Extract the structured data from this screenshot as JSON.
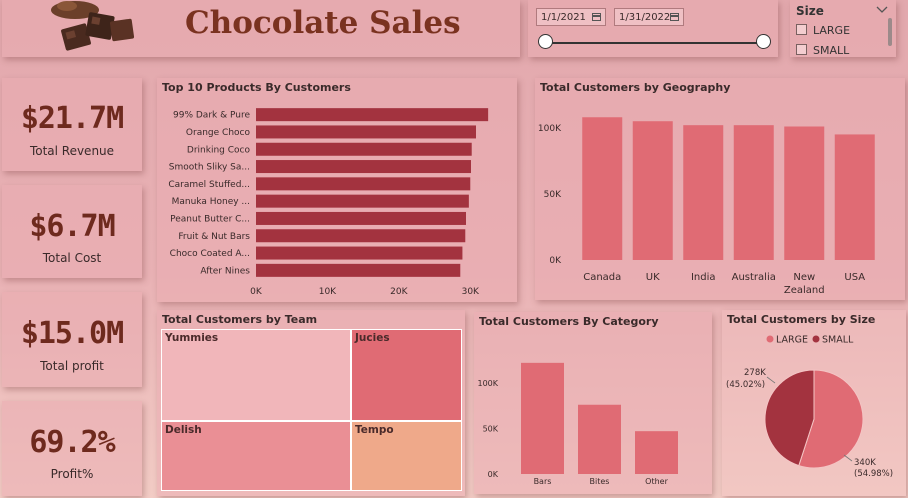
{
  "header": {
    "title": "Chocolate Sales",
    "logo": "chocolate-bars-icon"
  },
  "date_filter": {
    "start": "1/1/2021",
    "end": "1/31/2022",
    "slider_start": 0,
    "slider_end": 1
  },
  "size_filter": {
    "title": "Size",
    "options": [
      "LARGE",
      "SMALL"
    ]
  },
  "kpis": [
    {
      "value": "$21.7M",
      "label": "Total Revenue"
    },
    {
      "value": "$6.7M",
      "label": "Total Cost"
    },
    {
      "value": "$15.0M",
      "label": "Total profit"
    },
    {
      "value": "69.2%",
      "label": "Profit%"
    }
  ],
  "colors": {
    "bar_dark": "#a3333f",
    "bar_light": "#e06b74",
    "treemap": [
      "#f1b6ba",
      "#e06b74",
      "#ea8f95",
      "#efa98a"
    ],
    "pie": [
      "#e06b74",
      "#a3333f"
    ]
  },
  "chart_data": [
    {
      "type": "bar",
      "orientation": "horizontal",
      "title": "Top 10 Products By Customers",
      "categories": [
        "99% Dark & Pure",
        "Orange Choco",
        "Drinking Coco",
        "Smooth Sliky Sa...",
        "Caramel Stuffed...",
        "Manuka Honey ...",
        "Peanut Butter C...",
        "Fruit & Nut Bars",
        "Choco Coated A...",
        "After Nines"
      ],
      "values": [
        32500,
        30800,
        30200,
        30100,
        30000,
        29800,
        29400,
        29300,
        28900,
        28600
      ],
      "xlim": [
        0,
        35000
      ],
      "xticks": [
        "0K",
        "10K",
        "20K",
        "30K"
      ],
      "xtick_values": [
        0,
        10000,
        20000,
        30000
      ]
    },
    {
      "type": "bar",
      "title": "Total Customers by Geography",
      "categories": [
        "Canada",
        "UK",
        "India",
        "Australia",
        "New Zealand",
        "USA"
      ],
      "category_lines": [
        [
          "Canada"
        ],
        [
          "UK"
        ],
        [
          "India"
        ],
        [
          "Australia"
        ],
        [
          "New",
          "Zealand"
        ],
        [
          "USA"
        ]
      ],
      "values": [
        108000,
        105000,
        102000,
        102000,
        101000,
        95000
      ],
      "ylim": [
        0,
        115000
      ],
      "yticks": [
        "0K",
        "50K",
        "100K"
      ],
      "ytick_values": [
        0,
        50000,
        100000
      ]
    },
    {
      "type": "treemap",
      "title": "Total Customers by Team",
      "categories": [
        "Yummies",
        "Jucies",
        "Delish",
        "Tempo"
      ]
    },
    {
      "type": "bar",
      "title": "Total Customers By Category",
      "categories": [
        "Bars",
        "Bites",
        "Other"
      ],
      "values": [
        122000,
        76000,
        47000
      ],
      "ylim": [
        0,
        135000
      ],
      "yticks": [
        "0K",
        "50K",
        "100K"
      ],
      "ytick_values": [
        0,
        50000,
        100000
      ]
    },
    {
      "type": "pie",
      "title": "Total Customers by Size",
      "legend": [
        "LARGE",
        "SMALL"
      ],
      "slices": [
        {
          "name": "LARGE",
          "value": 340000,
          "label": "340K",
          "pct": "(54.98%)"
        },
        {
          "name": "SMALL",
          "value": 278000,
          "label": "278K",
          "pct": "(45.02%)"
        }
      ]
    }
  ]
}
